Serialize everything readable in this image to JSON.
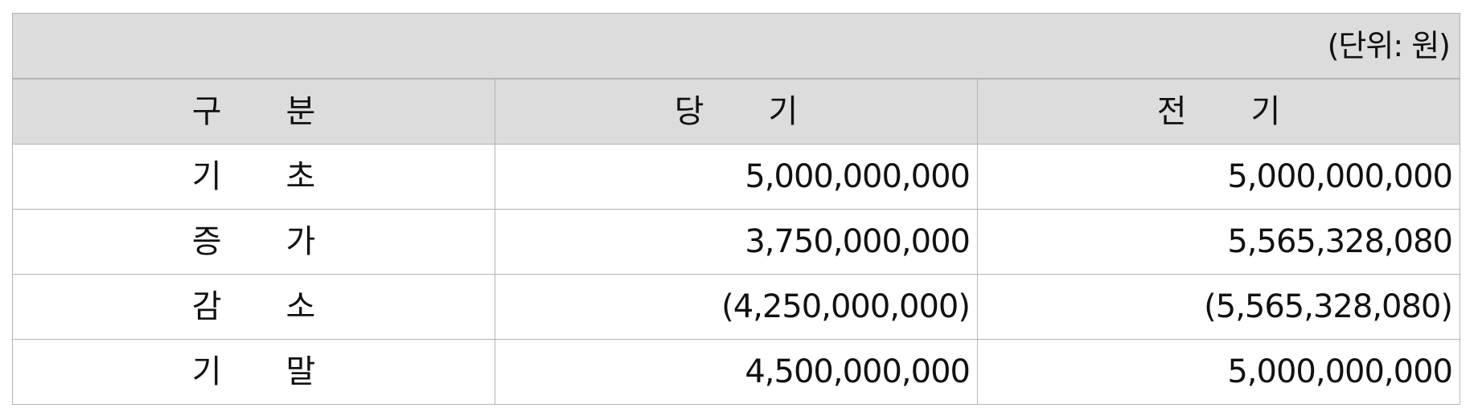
{
  "unit_note": "(단위: 원)",
  "columns": {
    "label": "구  분",
    "current": "당  기",
    "previous": "전  기"
  },
  "rows": [
    {
      "label": "기  초",
      "current": "5,000,000,000",
      "previous": "5,000,000,000"
    },
    {
      "label": "증  가",
      "current": "3,750,000,000",
      "previous": "5,565,328,080"
    },
    {
      "label": "감  소",
      "current": "(4,250,000,000)",
      "previous": "(5,565,328,080)"
    },
    {
      "label": "기  말",
      "current": "4,500,000,000",
      "previous": "5,000,000,000"
    }
  ]
}
